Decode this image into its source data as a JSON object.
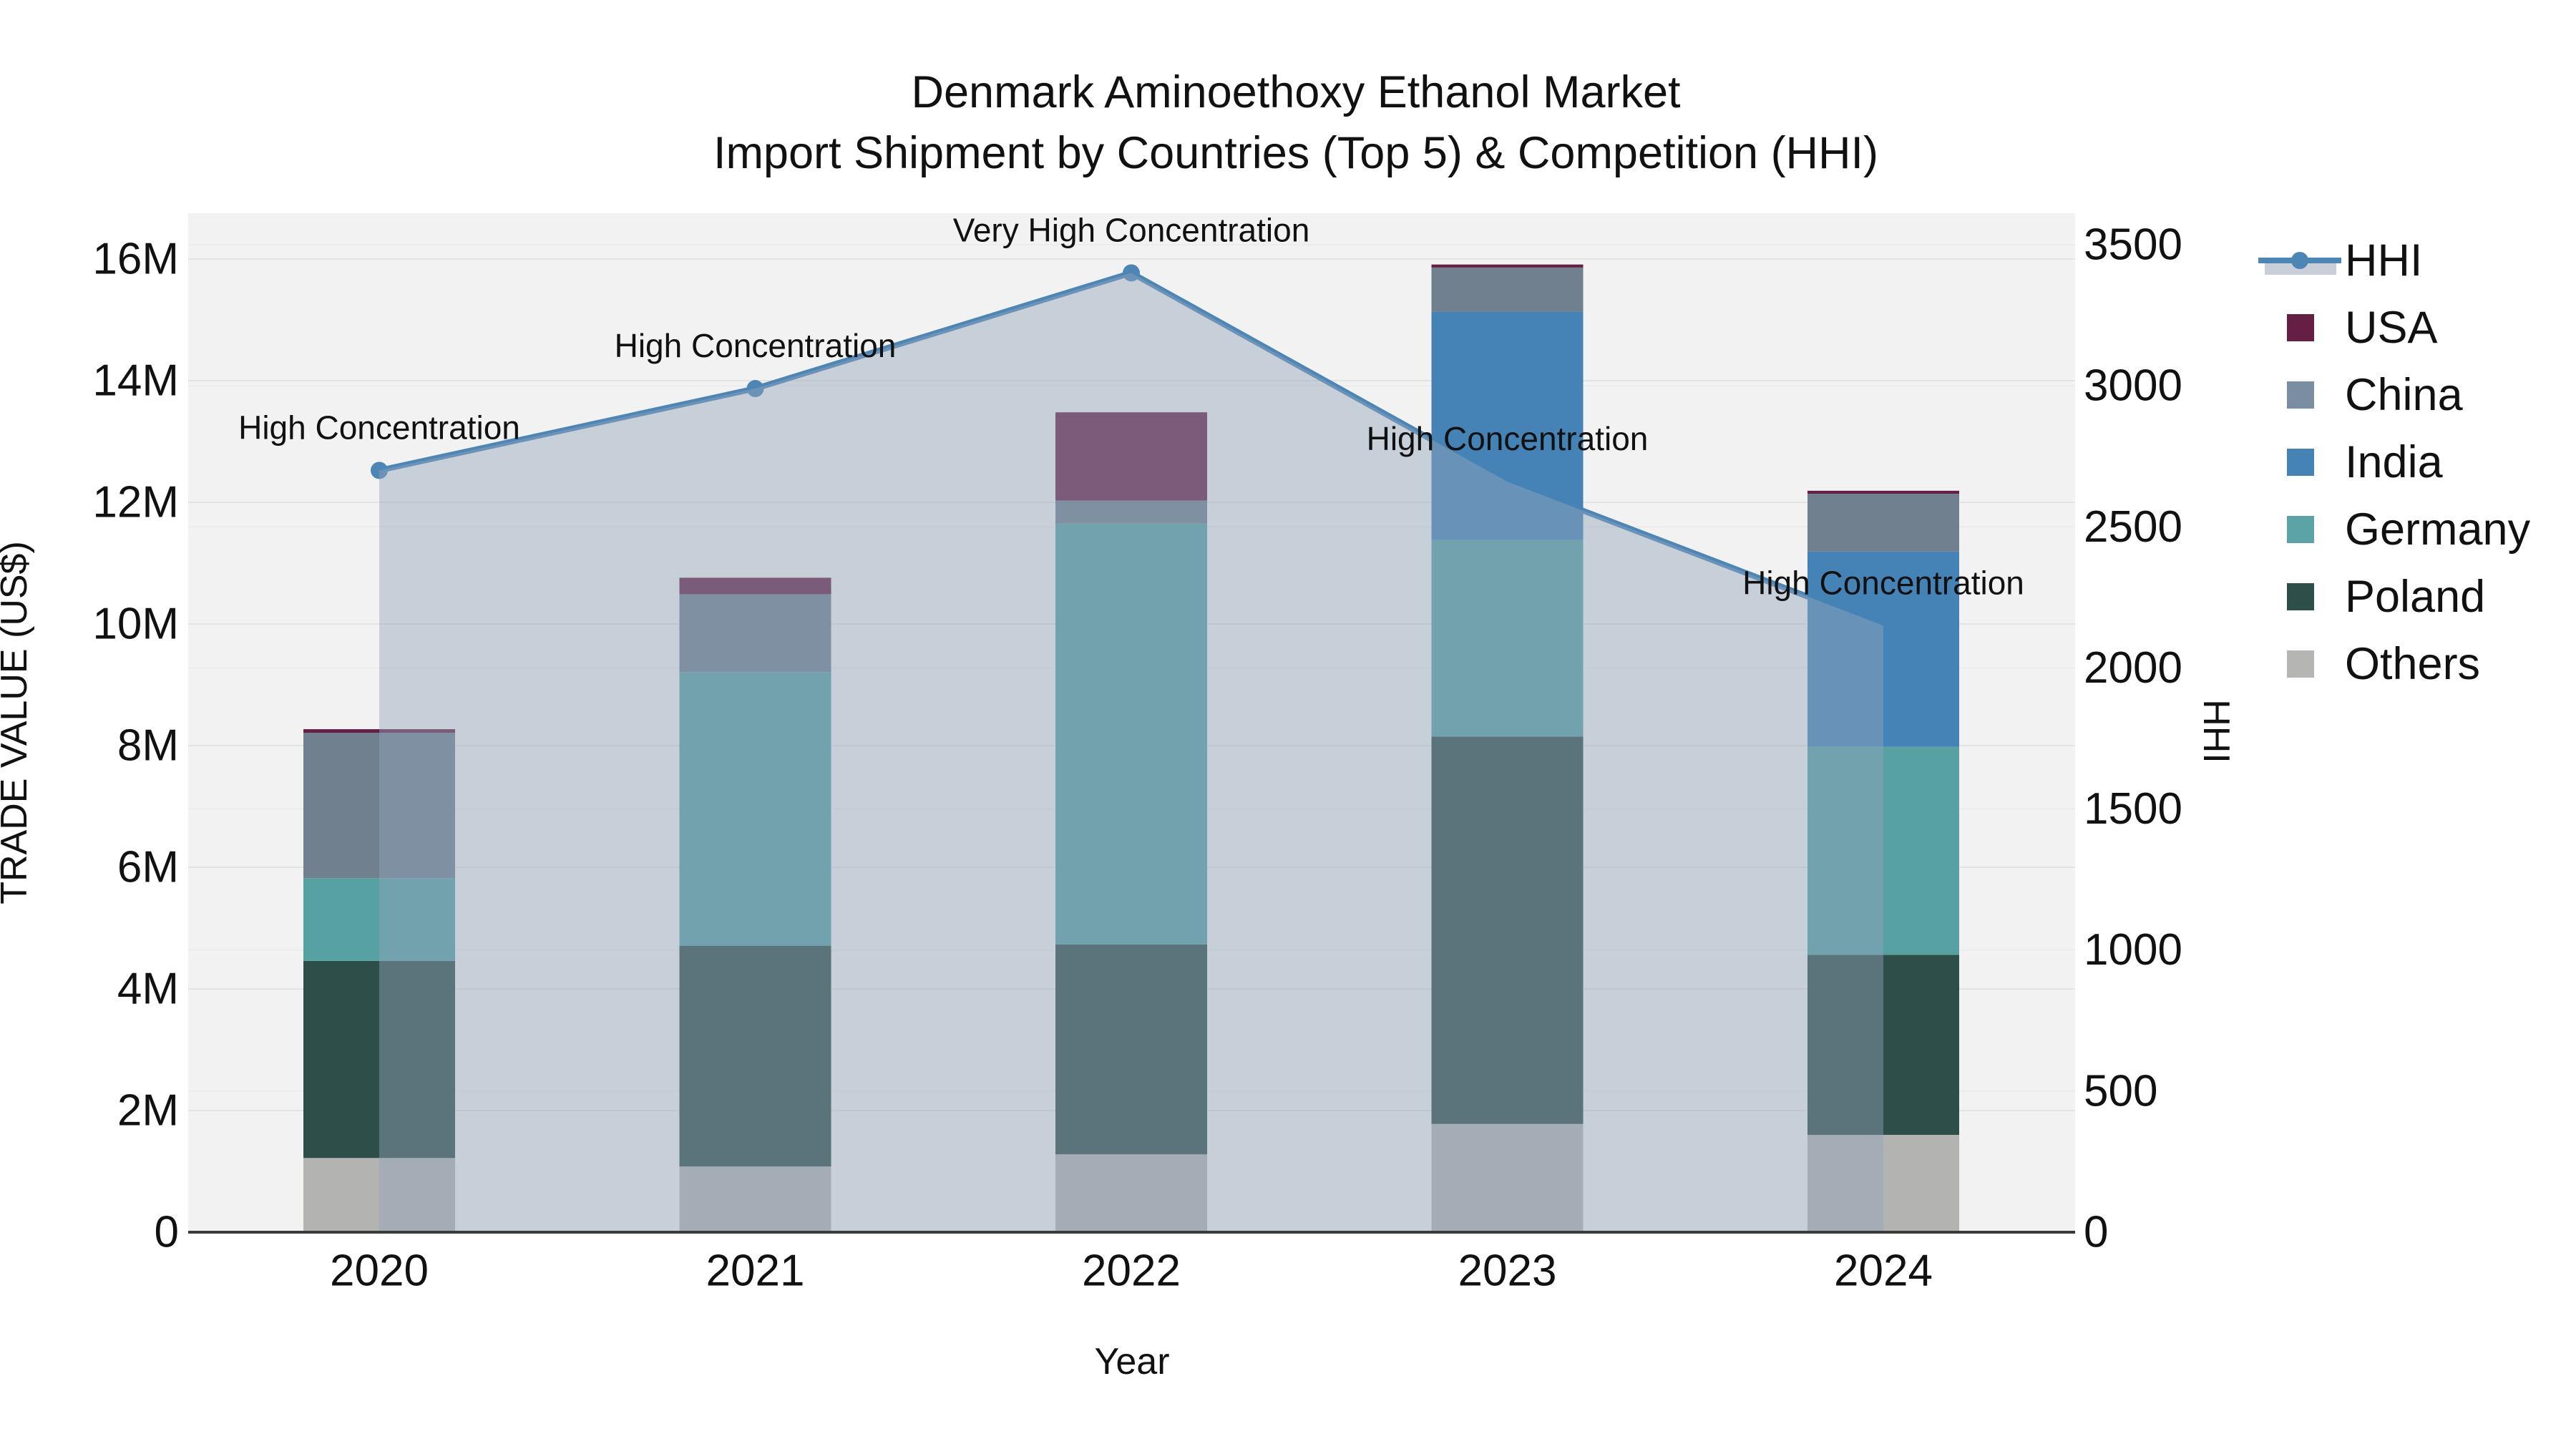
{
  "title": {
    "line1": "Denmark Aminoethoxy Ethanol Market",
    "line2": "Import Shipment by Countries (Top 5) & Competition (HHI)"
  },
  "axes": {
    "x": {
      "title": "Year",
      "ticks": [
        "2020",
        "2021",
        "2022",
        "2023",
        "2024"
      ]
    },
    "y_left": {
      "title": "TRADE VALUE (US$)",
      "ticks": [
        "0",
        "2M",
        "4M",
        "6M",
        "8M",
        "10M",
        "12M",
        "14M",
        "16M"
      ],
      "tick_values_millions": [
        0,
        2,
        4,
        6,
        8,
        10,
        12,
        14,
        16
      ]
    },
    "y_right": {
      "title": "HHI",
      "ticks": [
        "0",
        "500",
        "1000",
        "1500",
        "2000",
        "2500",
        "3000",
        "3500"
      ],
      "tick_values": [
        0,
        500,
        1000,
        1500,
        2000,
        2500,
        3000,
        3500
      ]
    }
  },
  "chart_data": {
    "type": "bar+line",
    "bar_mode": "stacked",
    "categories": [
      "2020",
      "2021",
      "2022",
      "2023",
      "2024"
    ],
    "value_unit": "US$ (millions), left axis; HHI index, right axis",
    "stack_order_bottom_to_top": [
      "Others",
      "Poland",
      "Germany",
      "India",
      "China",
      "USA"
    ],
    "series": [
      {
        "name": "USA",
        "color": "#661f44",
        "values": [
          0.06,
          0.27,
          1.45,
          0.05,
          0.05
        ]
      },
      {
        "name": "China",
        "color": "#70808f",
        "values": [
          2.39,
          1.28,
          0.38,
          0.73,
          0.95
        ]
      },
      {
        "name": "India",
        "color": "#4583b7",
        "values": [
          0,
          0,
          0,
          3.75,
          3.21
        ]
      },
      {
        "name": "Germany",
        "color": "#58a1a3",
        "values": [
          1.36,
          4.5,
          6.92,
          3.23,
          3.42
        ]
      },
      {
        "name": "Poland",
        "color": "#2e4e4a",
        "values": [
          3.24,
          3.63,
          3.45,
          6.37,
          2.96
        ]
      },
      {
        "name": "Others",
        "color": "#b3b3b1",
        "values": [
          1.22,
          1.08,
          1.28,
          1.78,
          1.6
        ]
      }
    ],
    "line_series": {
      "name": "HHI",
      "color": "#4d86b5",
      "area_color": "rgba(147,163,187,0.45)",
      "values": [
        2700,
        2990,
        3400,
        2660,
        2150
      ],
      "annotations": [
        "High Concentration",
        "High Concentration",
        "Very High Concentration",
        "High Concentration",
        "High Concentration"
      ]
    },
    "ylim_left_millions": [
      0,
      16.75
    ],
    "ylim_right": [
      0,
      3610
    ],
    "grid": "horizontal gridlines for both axes, light gray on #f2f2f2 plot background",
    "legend_position": "right, vertical"
  },
  "legend": {
    "items": [
      {
        "label": "HHI",
        "type": "line",
        "color": "#4d86b5",
        "band_color": "#c9cfd9"
      },
      {
        "label": "USA",
        "type": "swatch",
        "color": "#661f44"
      },
      {
        "label": "China",
        "type": "swatch",
        "color": "#7b8da0"
      },
      {
        "label": "India",
        "type": "swatch",
        "color": "#4583b7"
      },
      {
        "label": "Germany",
        "type": "swatch",
        "color": "#5ba3a4"
      },
      {
        "label": "Poland",
        "type": "swatch",
        "color": "#2e4e4a"
      },
      {
        "label": "Others",
        "type": "swatch",
        "color": "#b5b5b3"
      }
    ]
  },
  "colors": {
    "figure_bg": "#ffffff",
    "plot_bg": "#f2f2f2",
    "grid_major": "#e3e3e3",
    "grid_minor": "#ececec",
    "axis_line": "#3b3b3b",
    "text": "#111111"
  }
}
